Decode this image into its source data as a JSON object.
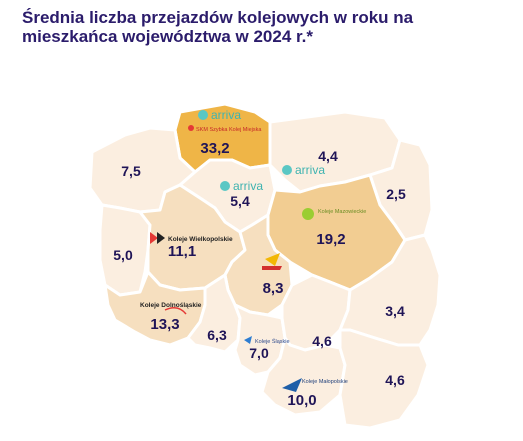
{
  "title": "Średnia liczba przejazdów kolejowych w roku na mieszkańca województwa w 2024 r.*",
  "colors": {
    "title": "#2b1c6b",
    "value_text": "#1f1457",
    "level_very_light": "#fbeee0",
    "level_light": "#f6dfbf",
    "level_medium": "#f2cd92",
    "level_highest": "#efb547",
    "border": "#ffffff"
  },
  "regions": [
    {
      "value": "33,2",
      "fill_level": "level_highest",
      "operators": [
        "arriva",
        "SKM Szybka Kolej Miejska"
      ]
    },
    {
      "value": "4,4",
      "fill_level": "level_very_light",
      "operators": [
        "arriva"
      ]
    },
    {
      "value": "7,5",
      "fill_level": "level_very_light",
      "operators": []
    },
    {
      "value": "5,4",
      "fill_level": "level_very_light",
      "operators": [
        "arriva"
      ]
    },
    {
      "value": "2,5",
      "fill_level": "level_very_light",
      "operators": []
    },
    {
      "value": "19,2",
      "fill_level": "level_medium",
      "operators": [
        "Koleje Mazowieckie"
      ]
    },
    {
      "value": "5,0",
      "fill_level": "level_very_light",
      "operators": []
    },
    {
      "value": "11,1",
      "fill_level": "level_light",
      "operators": [
        "Koleje Wielkopolskie"
      ]
    },
    {
      "value": "8,3",
      "fill_level": "level_light",
      "operators": [
        "ŁKA"
      ]
    },
    {
      "value": "13,3",
      "fill_level": "level_light",
      "operators": [
        "Koleje Dolnośląskie"
      ]
    },
    {
      "value": "6,3",
      "fill_level": "level_very_light",
      "operators": []
    },
    {
      "value": "7,0",
      "fill_level": "level_very_light",
      "operators": [
        "Koleje Śląskie"
      ]
    },
    {
      "value": "4,6",
      "fill_level": "level_very_light",
      "operators": []
    },
    {
      "value": "3,4",
      "fill_level": "level_very_light",
      "operators": []
    },
    {
      "value": "10,0",
      "fill_level": "level_very_light",
      "operators": [
        "Koleje Małopolskie"
      ]
    },
    {
      "value": "4,6",
      "fill_level": "level_very_light",
      "operators": []
    }
  ]
}
